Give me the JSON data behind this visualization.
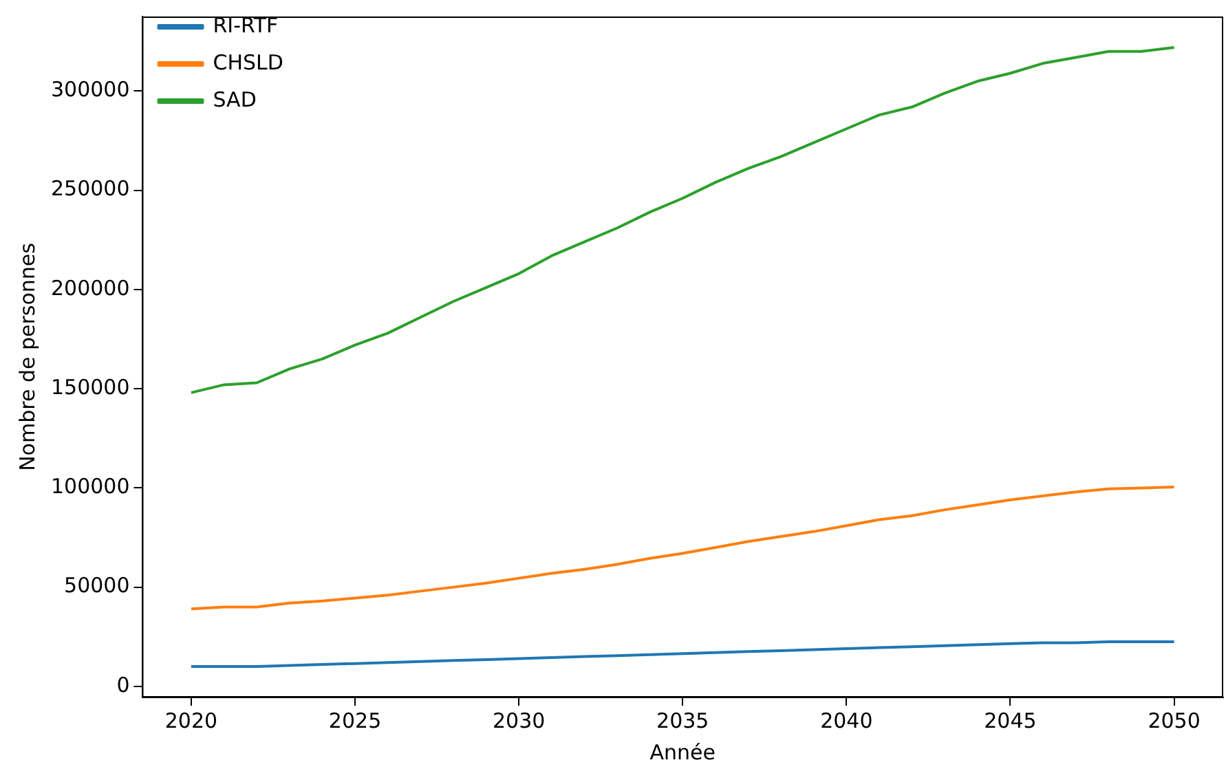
{
  "chart_data": {
    "type": "line",
    "xlabel": "Année",
    "ylabel": "Nombre de personnes",
    "x": [
      2020,
      2021,
      2022,
      2023,
      2024,
      2025,
      2026,
      2027,
      2028,
      2029,
      2030,
      2031,
      2032,
      2033,
      2034,
      2035,
      2036,
      2037,
      2038,
      2039,
      2040,
      2041,
      2042,
      2043,
      2044,
      2045,
      2046,
      2047,
      2048,
      2049,
      2050
    ],
    "series": [
      {
        "name": "RI-RTF",
        "color": "#1f77b4",
        "values": [
          10000,
          10000,
          10000,
          10500,
          11000,
          11500,
          12000,
          12500,
          13000,
          13500,
          14000,
          14500,
          15000,
          15500,
          16000,
          16500,
          17000,
          17500,
          18000,
          18500,
          19000,
          19500,
          20000,
          20500,
          21000,
          21500,
          22000,
          22000,
          22500,
          22500,
          22500
        ]
      },
      {
        "name": "CHSLD",
        "color": "#ff7f0e",
        "values": [
          39000,
          40000,
          40000,
          42000,
          43000,
          44500,
          46000,
          48000,
          50000,
          52000,
          54500,
          57000,
          59000,
          61500,
          64500,
          67000,
          70000,
          73000,
          75500,
          78000,
          81000,
          84000,
          86000,
          89000,
          91500,
          94000,
          96000,
          98000,
          99500,
          100000,
          100500
        ]
      },
      {
        "name": "SAD",
        "color": "#2ca02c",
        "values": [
          148000,
          152000,
          153000,
          160000,
          165000,
          172000,
          178000,
          186000,
          194000,
          201000,
          208000,
          217000,
          224000,
          231000,
          239000,
          246000,
          254000,
          261000,
          267000,
          274000,
          281000,
          288000,
          292000,
          299000,
          305000,
          309000,
          314000,
          317000,
          320000,
          320000,
          322000
        ]
      }
    ],
    "xlim": [
      2018.5,
      2051.5
    ],
    "xticks": [
      2020,
      2025,
      2030,
      2035,
      2040,
      2045,
      2050
    ],
    "ylim": [
      -5600,
      337600
    ],
    "yticks": [
      0,
      50000,
      100000,
      150000,
      200000,
      250000,
      300000
    ],
    "grid": false,
    "legend": "top left",
    "marker": "none",
    "line_style": "solid"
  }
}
